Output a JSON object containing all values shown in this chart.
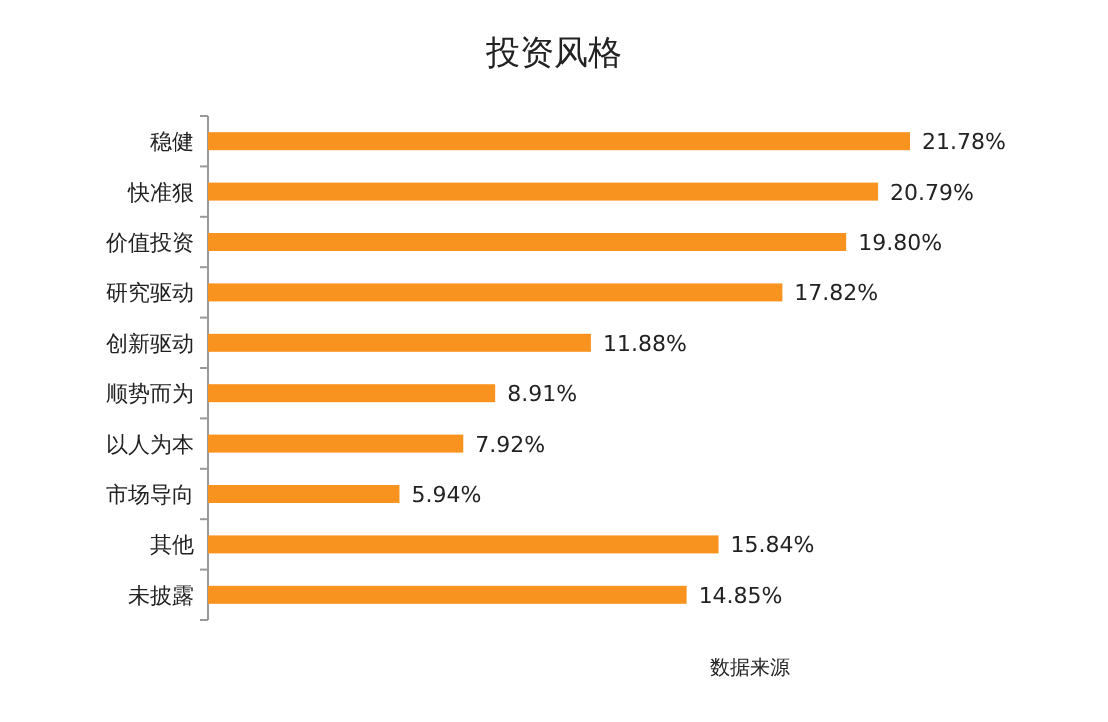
{
  "chart_data": {
    "type": "bar",
    "orientation": "horizontal",
    "title": "投资风格",
    "categories": [
      "稳健",
      "快准狠",
      "价值投资",
      "研究驱动",
      "创新驱动",
      "顺势而为",
      "以人为本",
      "市场导向",
      "其他",
      "未披露"
    ],
    "values": [
      21.78,
      20.79,
      19.8,
      17.82,
      11.88,
      8.91,
      7.92,
      5.94,
      15.84,
      14.85
    ],
    "value_labels": [
      "21.78%",
      "20.79%",
      "19.80%",
      "17.82%",
      "11.88%",
      "8.91%",
      "7.92%",
      "5.94%",
      "15.84%",
      "14.85%"
    ],
    "color": "#f7931e",
    "annotations": [
      "数据来源"
    ]
  }
}
